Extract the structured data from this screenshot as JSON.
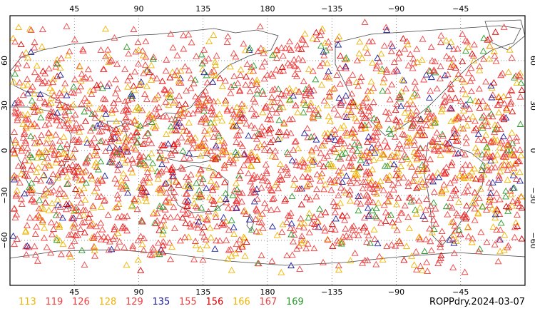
{
  "map": {
    "frame_color": "#000000",
    "ocean_color": "#ffffff",
    "coastline_color": "#444444",
    "grid_color": "#666666",
    "lon_top_ticks": [
      {
        "value": 45,
        "label": "45"
      },
      {
        "value": 90,
        "label": "90"
      },
      {
        "value": 135,
        "label": "135"
      },
      {
        "value": 180,
        "label": "180"
      },
      {
        "value": 225,
        "label": "−135"
      },
      {
        "value": 270,
        "label": "−90"
      },
      {
        "value": 315,
        "label": "−45"
      }
    ],
    "lon_bottom_ticks": [
      {
        "value": 45,
        "label": "45"
      },
      {
        "value": 90,
        "label": "90"
      },
      {
        "value": 135,
        "label": "135"
      },
      {
        "value": 180,
        "label": "180"
      },
      {
        "value": 225,
        "label": "−135"
      },
      {
        "value": 270,
        "label": "−90"
      },
      {
        "value": 315,
        "label": "−45"
      }
    ],
    "lat_ticks": [
      {
        "value": 60,
        "label": "60"
      },
      {
        "value": 30,
        "label": "30"
      },
      {
        "value": 0,
        "label": "0"
      },
      {
        "value": -30,
        "label": "−30"
      },
      {
        "value": -60,
        "label": "−60"
      }
    ],
    "lon_range": [
      0,
      360
    ],
    "lat_range": [
      -90,
      90
    ],
    "marker": "open-triangle"
  },
  "legend": [
    {
      "label": "113",
      "color": "#f0b400"
    },
    {
      "label": "119",
      "color": "#f04040"
    },
    {
      "label": "126",
      "color": "#f04040"
    },
    {
      "label": "128",
      "color": "#f0b400"
    },
    {
      "label": "129",
      "color": "#f04040"
    },
    {
      "label": "135",
      "color": "#1c1ca0"
    },
    {
      "label": "155",
      "color": "#f04040"
    },
    {
      "label": "156",
      "color": "#e00000"
    },
    {
      "label": "166",
      "color": "#f0b400"
    },
    {
      "label": "167",
      "color": "#f04040"
    },
    {
      "label": "169",
      "color": "#2a9a2a"
    }
  ],
  "caption": "ROPPdry.2024-03-07"
}
